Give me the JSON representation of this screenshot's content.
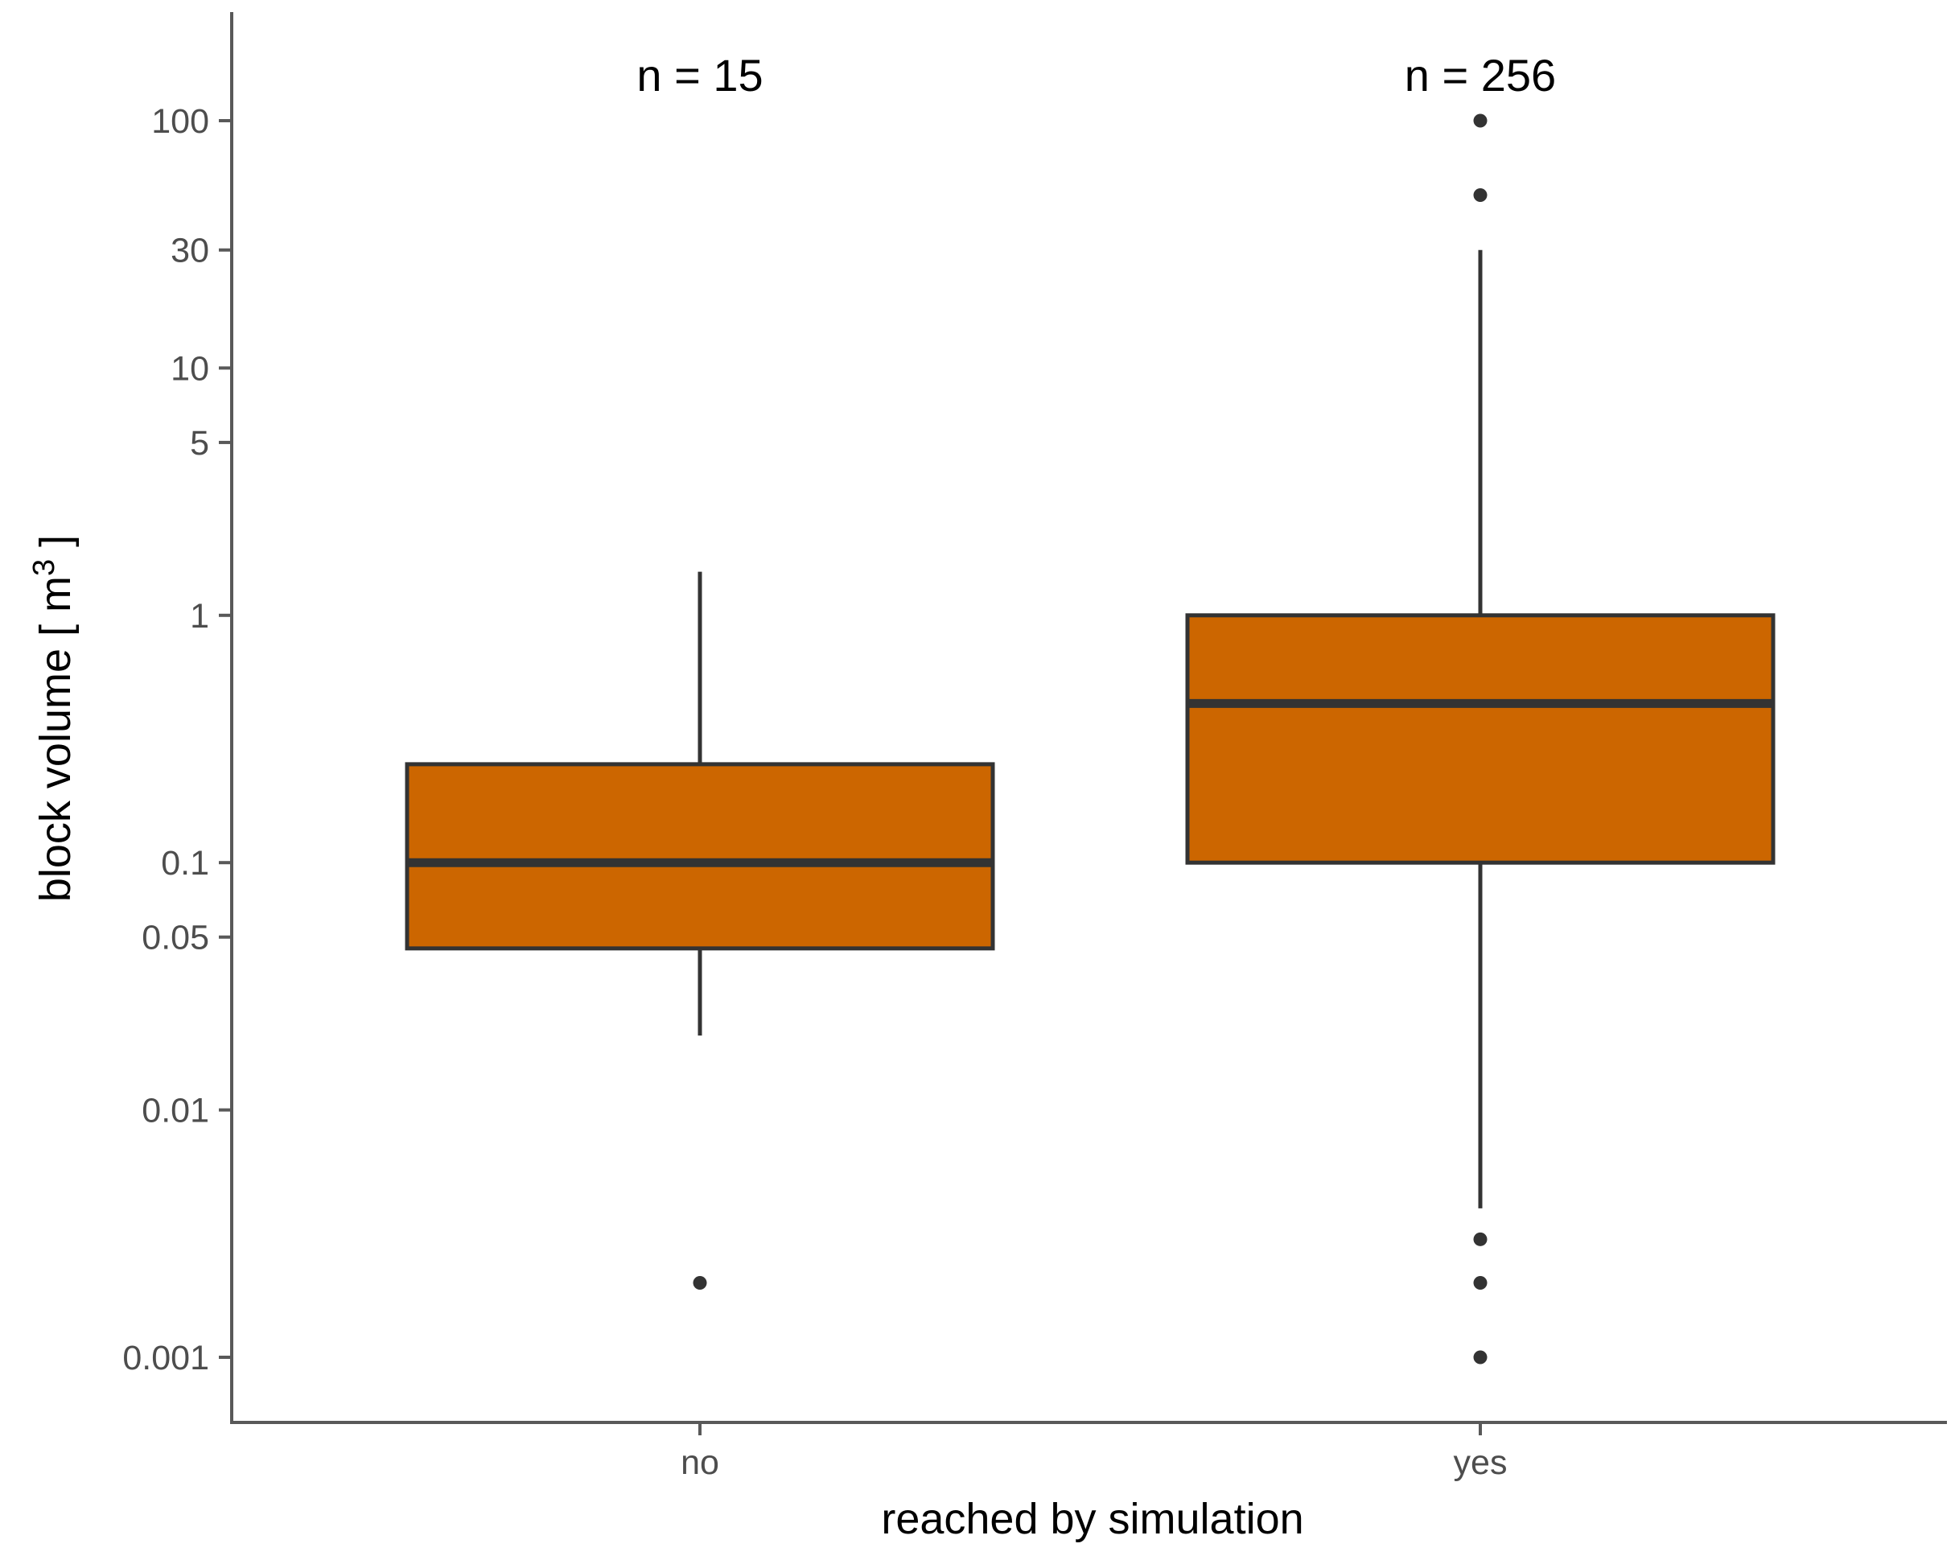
{
  "chart_data": {
    "type": "boxplot",
    "title": "",
    "xlabel": "reached by simulation",
    "ylabel": "block volume [ m",
    "ylabel_superscript": "3",
    "ylabel_suffix": " ]",
    "yscale": "log10",
    "ylim": [
      0.00055,
      200
    ],
    "yticks": [
      {
        "value": 0.001,
        "label": "0.001"
      },
      {
        "value": 0.01,
        "label": "0.01"
      },
      {
        "value": 0.05,
        "label": "0.05"
      },
      {
        "value": 0.1,
        "label": "0.1"
      },
      {
        "value": 1,
        "label": "1"
      },
      {
        "value": 5,
        "label": "5"
      },
      {
        "value": 10,
        "label": "10"
      },
      {
        "value": 30,
        "label": "30"
      },
      {
        "value": 100,
        "label": "100"
      }
    ],
    "categories": [
      "no",
      "yes"
    ],
    "boxes": [
      {
        "category": "no",
        "n_label": "n = 15",
        "whisker_low": 0.02,
        "q1": 0.045,
        "median": 0.1,
        "q3": 0.25,
        "whisker_high": 1.5,
        "outliers": [
          0.002
        ]
      },
      {
        "category": "yes",
        "n_label": "n = 256",
        "whisker_low": 0.004,
        "q1": 0.1,
        "median": 0.44,
        "q3": 1.0,
        "whisker_high": 30,
        "outliers": [
          0.001,
          0.002,
          0.003,
          50,
          100
        ]
      }
    ],
    "colors": {
      "box_fill": "#cc6600",
      "box_line": "#333333",
      "axis_line": "#595959",
      "tick_text": "#4d4d4d"
    },
    "grid": false,
    "legend": "none"
  }
}
